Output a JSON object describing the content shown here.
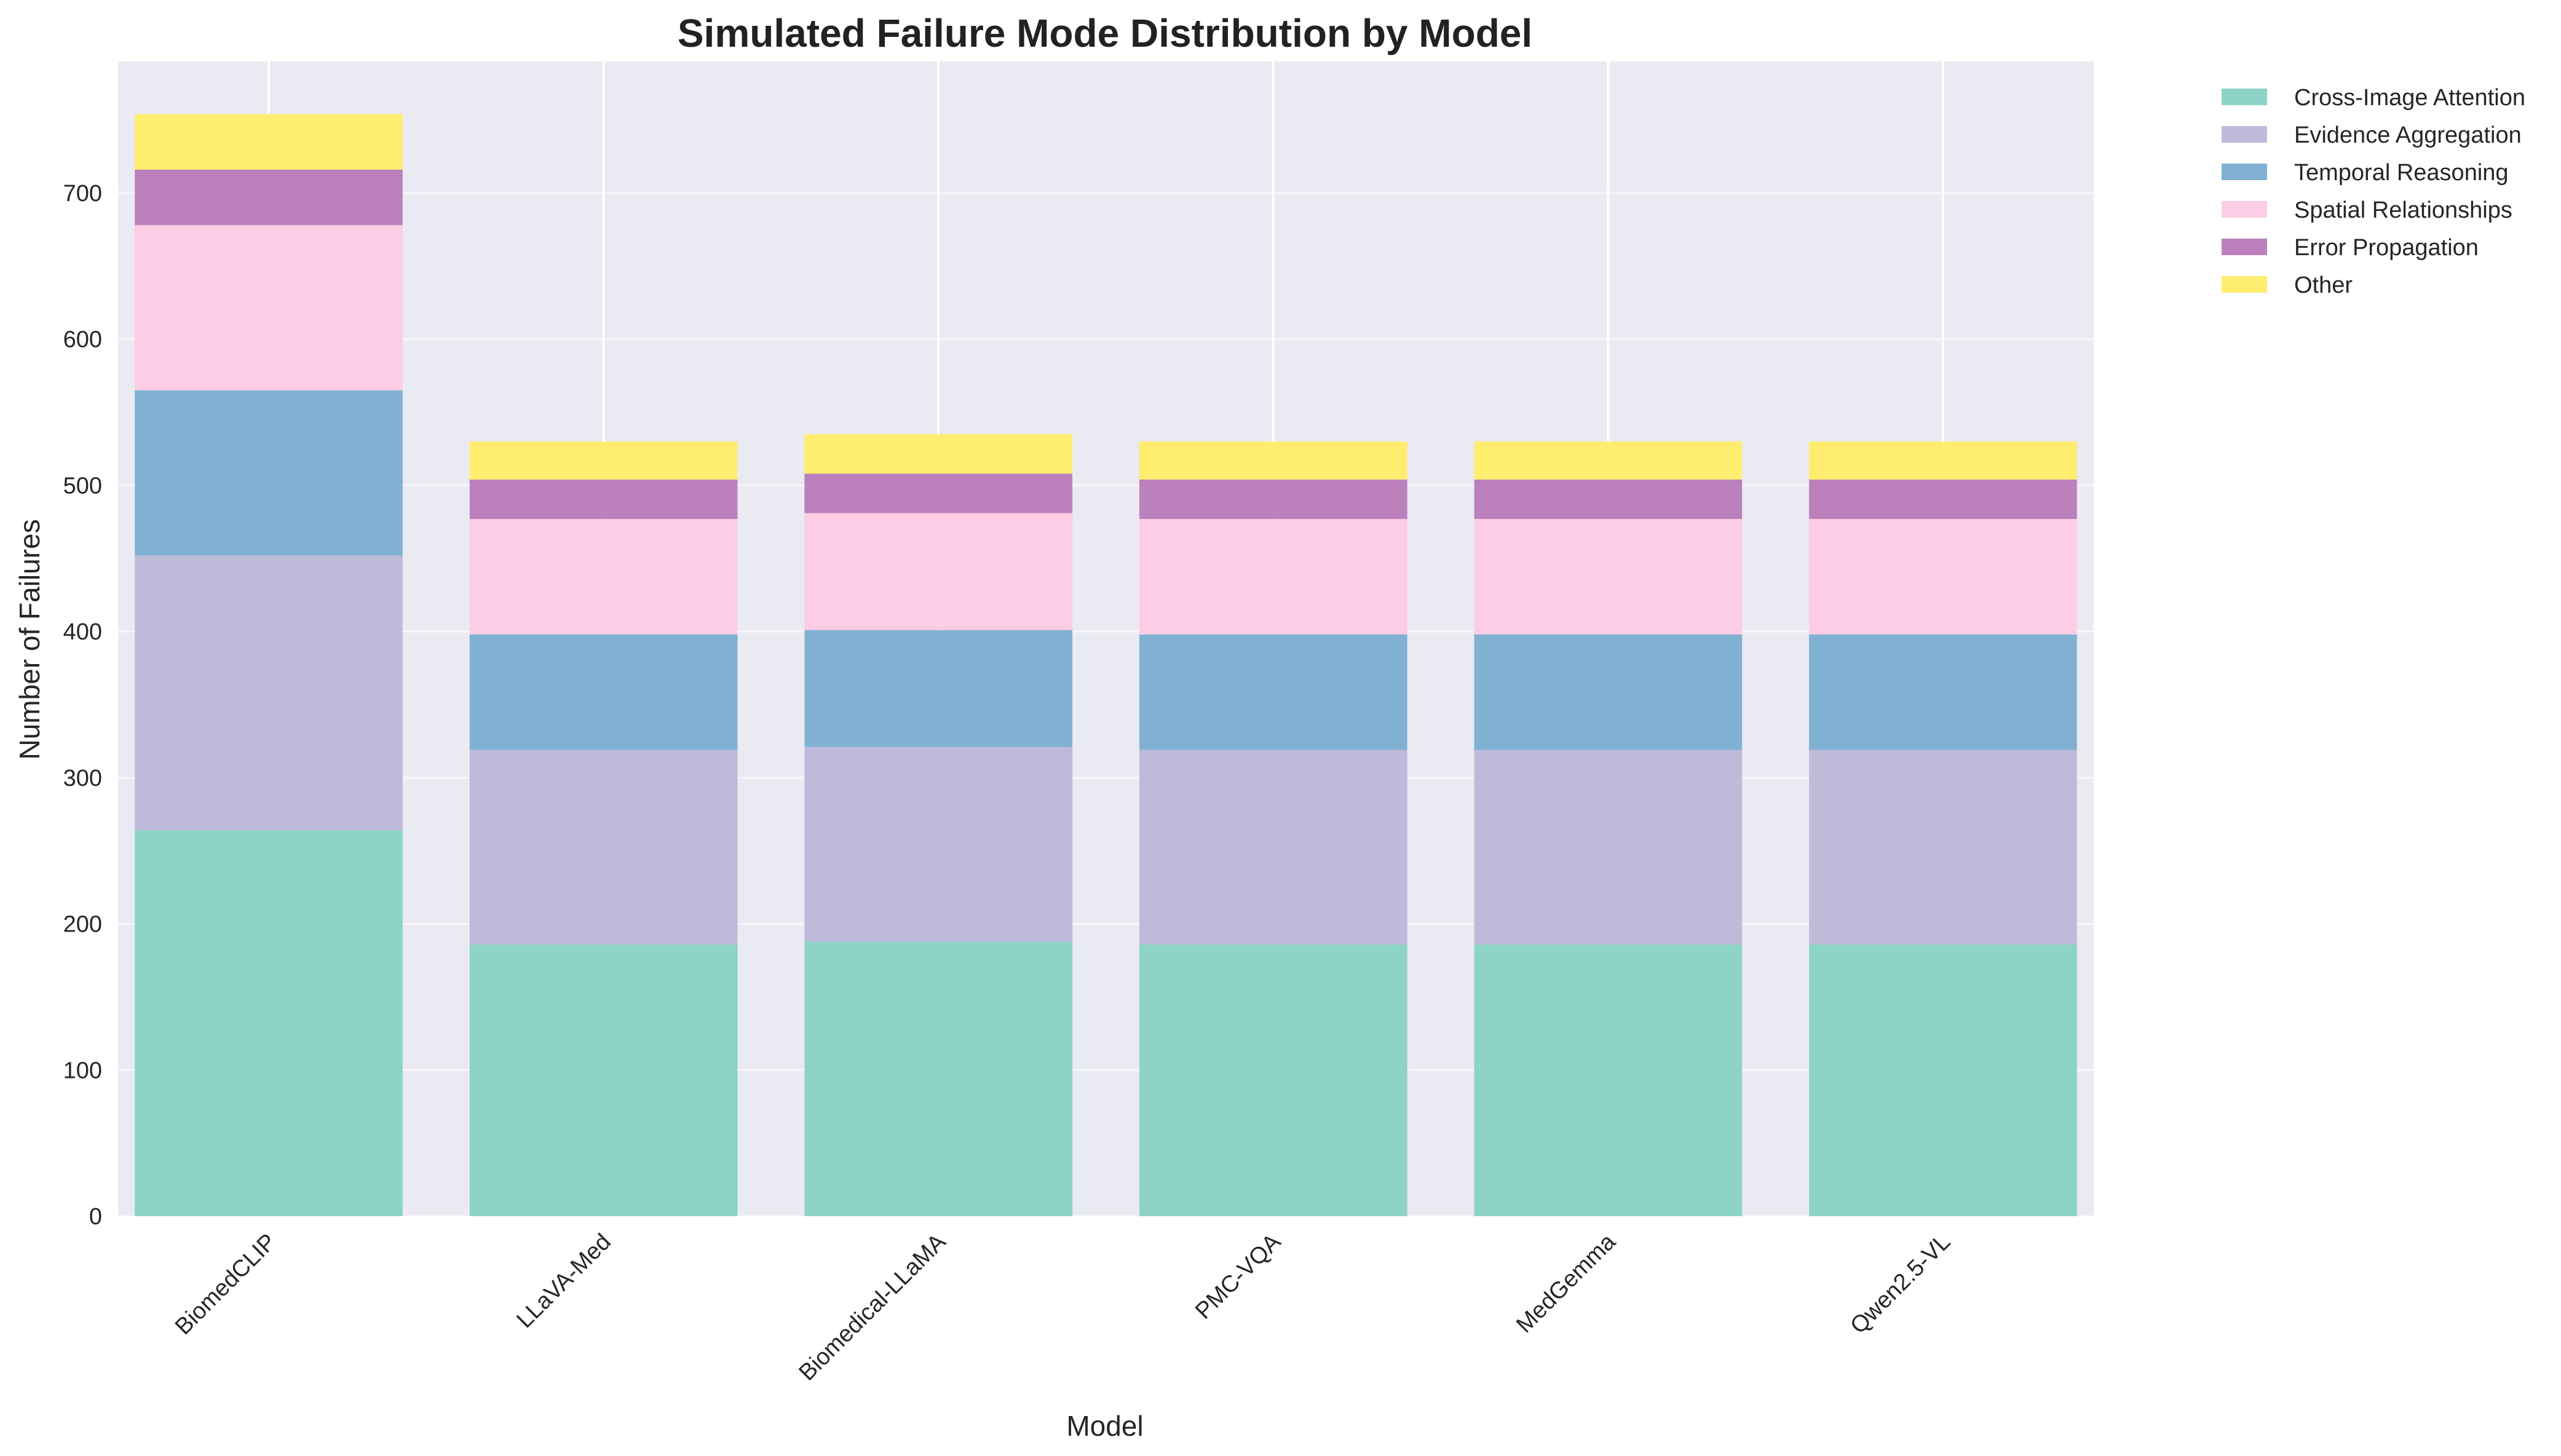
{
  "chart_data": {
    "type": "bar",
    "stacked": true,
    "title": "Simulated Failure Mode Distribution by Model",
    "xlabel": "Model",
    "ylabel": "Number of Failures",
    "ylim": [
      0,
      790
    ],
    "yticks": [
      0,
      100,
      200,
      300,
      400,
      500,
      600,
      700
    ],
    "grid": true,
    "legend_position": "outside-top-right",
    "categories": [
      "BiomedCLIP",
      "LLaVA-Med",
      "Biomedical-LLaMA",
      "PMC-VQA",
      "MedGemma",
      "Qwen2.5-VL"
    ],
    "series": [
      {
        "name": "Cross-Image Attention",
        "color": "#8dd3c7",
        "values": [
          264,
          186,
          188,
          186,
          186,
          186
        ]
      },
      {
        "name": "Evidence Aggregation",
        "color": "#bebada",
        "values": [
          188,
          133,
          133,
          133,
          133,
          133
        ]
      },
      {
        "name": "Temporal Reasoning",
        "color": "#80b1d3",
        "values": [
          113,
          79,
          80,
          79,
          79,
          79
        ]
      },
      {
        "name": "Spatial Relationships",
        "color": "#fccde5",
        "values": [
          113,
          79,
          80,
          79,
          79,
          79
        ]
      },
      {
        "name": "Error Propagation",
        "color": "#bc80bd",
        "values": [
          38,
          27,
          27,
          27,
          27,
          27
        ]
      },
      {
        "name": "Other",
        "color": "#ffed6f",
        "values": [
          38,
          26,
          27,
          26,
          26,
          26
        ]
      }
    ]
  }
}
